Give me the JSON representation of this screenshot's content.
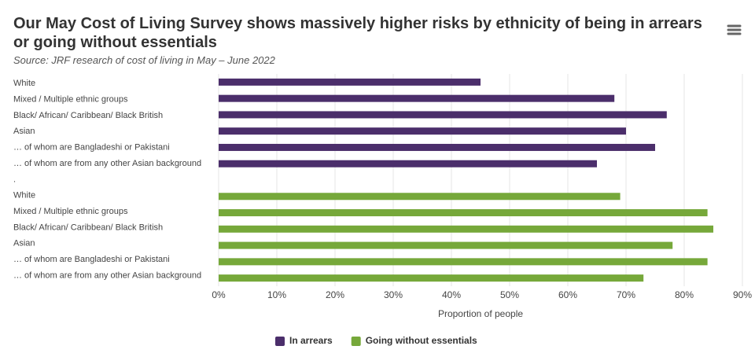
{
  "chart_data": {
    "type": "bar",
    "orientation": "horizontal",
    "title": "Our May Cost of Living Survey shows massively higher risks by ethnicity of being in arrears or going without essentials",
    "subtitle": "Source: JRF research of cost of living in May – June 2022",
    "x_label": "Proportion of people",
    "categories": [
      "White",
      "Mixed / Multiple ethnic groups",
      "Black/ African/ Caribbean/ Black British",
      "Asian",
      "… of whom are Bangladeshi or Pakistani",
      "… of whom are from any other Asian background",
      ".",
      "White",
      "Mixed / Multiple ethnic groups",
      "Black/ African/ Caribbean/ Black British",
      "Asian",
      "… of whom are Bangladeshi or Pakistani",
      "… of whom are from any other Asian background"
    ],
    "series": [
      {
        "name": "In arrears",
        "color": "#4b2e6b",
        "values": [
          45,
          68,
          77,
          70,
          75,
          65,
          null,
          null,
          null,
          null,
          null,
          null,
          null
        ]
      },
      {
        "name": "Going without essentials",
        "color": "#76a83a",
        "values": [
          null,
          null,
          null,
          null,
          null,
          null,
          null,
          69,
          84,
          85,
          78,
          84,
          73
        ]
      }
    ],
    "xlim": [
      0,
      90
    ],
    "xticks": [
      {
        "value": 0,
        "label": "0%"
      },
      {
        "value": 10,
        "label": "10%"
      },
      {
        "value": 20,
        "label": "20%"
      },
      {
        "value": 30,
        "label": "30%"
      },
      {
        "value": 40,
        "label": "40%"
      },
      {
        "value": 50,
        "label": "50%"
      },
      {
        "value": 60,
        "label": "60%"
      },
      {
        "value": 70,
        "label": "70%"
      },
      {
        "value": 80,
        "label": "80%"
      },
      {
        "value": 90,
        "label": "90%"
      }
    ],
    "grid": true,
    "legend": "bottom"
  }
}
